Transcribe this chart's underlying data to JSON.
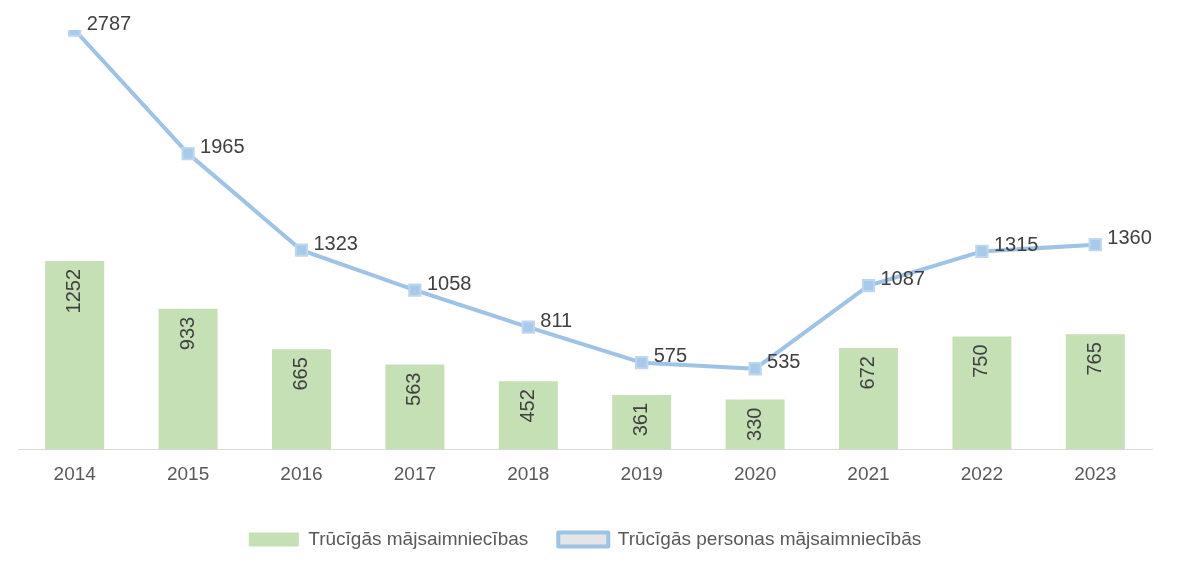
{
  "chart_data": {
    "type": "bar",
    "categories": [
      "2014",
      "2015",
      "2016",
      "2017",
      "2018",
      "2019",
      "2020",
      "2021",
      "2022",
      "2023"
    ],
    "series": [
      {
        "name": "Trūcīgās mājsaimniecības",
        "color": "#c5e0b4",
        "values": [
          1252,
          933,
          665,
          563,
          452,
          361,
          330,
          672,
          750,
          765
        ]
      },
      {
        "name": "Trūcīgās personas mājsaimniecībās",
        "type": "line",
        "color": "#9dc3e6",
        "marker": "square",
        "values": [
          2787,
          1965,
          1323,
          1058,
          811,
          575,
          535,
          1087,
          1315,
          1360
        ]
      }
    ],
    "data_labels": true,
    "legend": "bottom",
    "grid": false
  }
}
